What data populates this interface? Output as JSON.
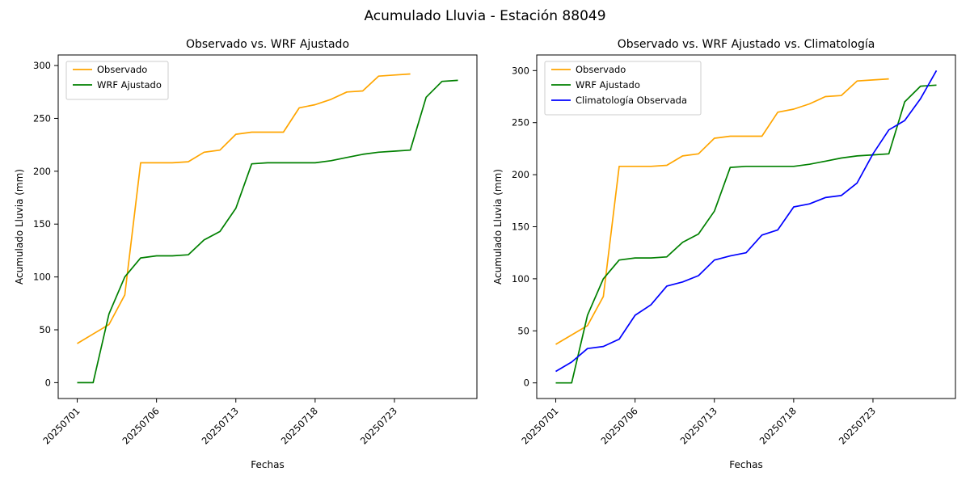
{
  "figure": {
    "suptitle": "Acumulado Lluvia - Estación 88049"
  },
  "chart_data": [
    {
      "type": "line",
      "title": "Observado vs. WRF Ajustado",
      "xlabel": "Fechas",
      "ylabel": "Acumulado Lluvia (mm)",
      "x_tick_positions": [
        0,
        5,
        10,
        15,
        20
      ],
      "x_tick_labels": [
        "20250701",
        "20250706",
        "20250713",
        "20250718",
        "20250723"
      ],
      "y_ticks": [
        0,
        50,
        100,
        150,
        200,
        250,
        300
      ],
      "xlim": [
        -1.2,
        25.2
      ],
      "ylim": [
        -15,
        310
      ],
      "grid": false,
      "legend_position": "upper-left",
      "series": [
        {
          "name": "Observado",
          "color": "#ffa500",
          "values": [
            37,
            46,
            55,
            83,
            208,
            208,
            208,
            209,
            218,
            220,
            235,
            237,
            237,
            237,
            260,
            263,
            268,
            275,
            276,
            290,
            291,
            292
          ]
        },
        {
          "name": "WRF Ajustado",
          "color": "#008000",
          "values": [
            0,
            0,
            65,
            100,
            118,
            120,
            120,
            121,
            135,
            143,
            165,
            207,
            208,
            208,
            208,
            208,
            210,
            213,
            216,
            218,
            219,
            220,
            270,
            285,
            286
          ]
        }
      ]
    },
    {
      "type": "line",
      "title": "Observado vs. WRF Ajustado vs. Climatología",
      "xlabel": "Fechas",
      "ylabel": "Acumulado Lluvia (mm)",
      "x_tick_positions": [
        0,
        5,
        10,
        15,
        20
      ],
      "x_tick_labels": [
        "20250701",
        "20250706",
        "20250713",
        "20250718",
        "20250723"
      ],
      "y_ticks": [
        0,
        50,
        100,
        150,
        200,
        250,
        300
      ],
      "xlim": [
        -1.2,
        25.2
      ],
      "ylim": [
        -15,
        315
      ],
      "grid": false,
      "legend_position": "upper-left",
      "series": [
        {
          "name": "Observado",
          "color": "#ffa500",
          "values": [
            37,
            46,
            55,
            83,
            208,
            208,
            208,
            209,
            218,
            220,
            235,
            237,
            237,
            237,
            260,
            263,
            268,
            275,
            276,
            290,
            291,
            292
          ]
        },
        {
          "name": "WRF Ajustado",
          "color": "#008000",
          "values": [
            0,
            0,
            65,
            100,
            118,
            120,
            120,
            121,
            135,
            143,
            165,
            207,
            208,
            208,
            208,
            208,
            210,
            213,
            216,
            218,
            219,
            220,
            270,
            285,
            286
          ]
        },
        {
          "name": "Climatología Observada",
          "color": "#0000ff",
          "values": [
            11,
            20,
            33,
            35,
            42,
            65,
            75,
            93,
            97,
            103,
            118,
            122,
            125,
            142,
            147,
            169,
            172,
            178,
            180,
            192,
            220,
            243,
            252,
            273,
            300
          ]
        }
      ]
    }
  ]
}
